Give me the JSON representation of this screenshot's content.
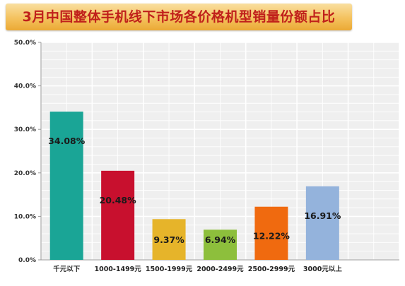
{
  "chart_data": {
    "type": "bar",
    "title": "3月中国整体手机线下市场各价格机型销量份额占比",
    "categories": [
      "千元以下",
      "1000-1499元",
      "1500-1999元",
      "2000-2499元",
      "2500-2999元",
      "3000元以上"
    ],
    "values": [
      34.08,
      20.48,
      9.37,
      6.94,
      12.22,
      16.91
    ],
    "value_labels": [
      "34.08%",
      "20.48%",
      "9.37%",
      "6.94%",
      "12.22%",
      "16.91%"
    ],
    "colors": [
      "#1aa596",
      "#c8102e",
      "#e6b42a",
      "#8dbf3c",
      "#f06a0f",
      "#94b3dc"
    ],
    "yticks": [
      0,
      10,
      20,
      30,
      40,
      50
    ],
    "ytick_labels": [
      "0.0%",
      "10.0%",
      "20.0%",
      "30.0%",
      "40.0%",
      "50.0%"
    ],
    "ylim": [
      0,
      50
    ],
    "xlabel": "",
    "ylabel": "",
    "grid": true,
    "legend": "none",
    "plot_background": "#efefef",
    "grid_color": "#ffffff"
  }
}
